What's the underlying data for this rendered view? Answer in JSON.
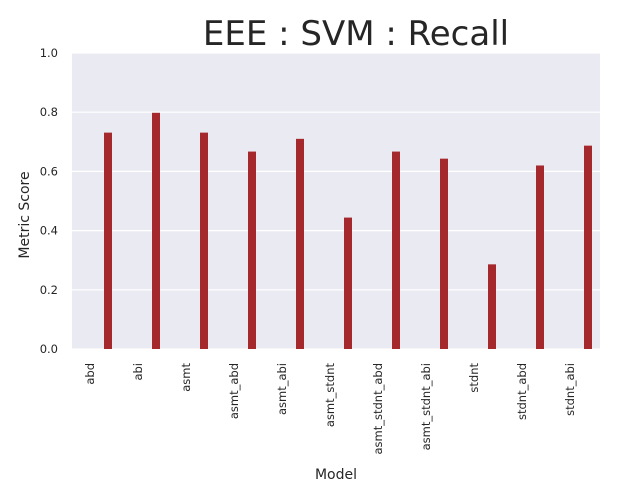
{
  "chart_data": {
    "type": "bar",
    "title": "EEE : SVM : Recall",
    "xlabel": "Model",
    "ylabel": "Metric Score",
    "categories": [
      "abd",
      "abi",
      "asmt",
      "asmt_abd",
      "asmt_abi",
      "asmt_stdnt",
      "asmt_stdnt_abd",
      "asmt_stdnt_abi",
      "stdnt",
      "stdnt_abd",
      "stdnt_abi"
    ],
    "values": [
      0.731,
      0.798,
      0.731,
      0.667,
      0.71,
      0.444,
      0.667,
      0.643,
      0.286,
      0.62,
      0.687
    ],
    "ylim": [
      0,
      1.0
    ],
    "yticks": [
      "0.0",
      "0.2",
      "0.4",
      "0.6",
      "0.8",
      "1.0"
    ],
    "grid": true,
    "bar_color": "#a5292c",
    "background_color": "#eaeaf2"
  }
}
